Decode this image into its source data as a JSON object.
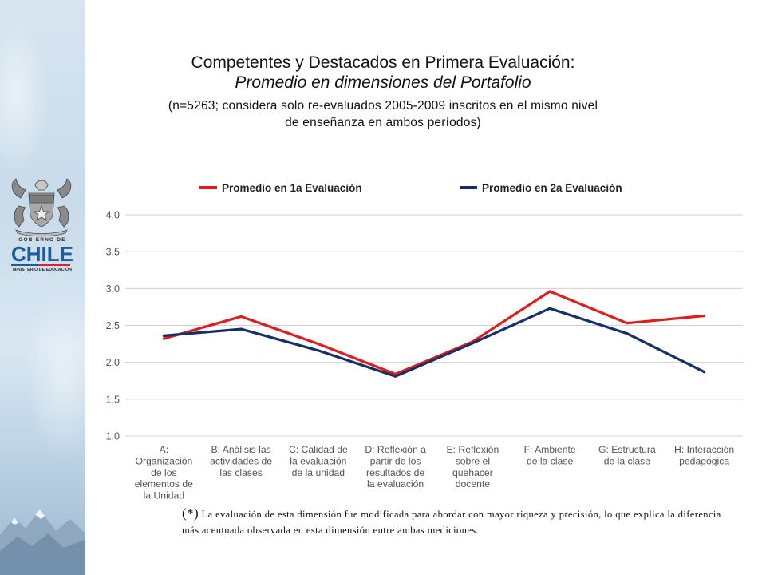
{
  "slide": {
    "title_line1": "Competentes y Destacados en Primera Evaluación:",
    "title_line2": "Promedio en dimensiones del Portafolio",
    "subtitle_line1": "(n=5263; considera solo re-evaluados 2005-2009 inscritos en el mismo nivel",
    "subtitle_line2": "de enseñanza en ambos períodos)",
    "footnote_mark": "(*)",
    "footnote_text": " La evaluación de esta dimensión fue modificada para abordar con mayor riqueza y precisión, lo que explica la diferencia más acentuada observada en esta dimensión entre ambas mediciones."
  },
  "logo": {
    "top_label": "GOBIERNO DE",
    "word": "CHILE",
    "bottom_label": "MINISTERIO DE EDUCACIÓN",
    "crest_icon": "coat-of-arms-icon"
  },
  "colors": {
    "first_eval": "#e31b1b",
    "second_eval": "#152f6b",
    "grid": "#d0d0d0",
    "tick_text": "#555555",
    "chile_blue": "#1c5d9e",
    "chile_red": "#d7262e"
  },
  "chart_data": {
    "type": "line",
    "title": "",
    "xlabel": "",
    "ylabel": "",
    "ylim": [
      1.0,
      4.0
    ],
    "yticks": [
      1.0,
      1.5,
      2.0,
      2.5,
      3.0,
      3.5,
      4.0
    ],
    "ytick_labels": [
      "1,0",
      "1,5",
      "2,0",
      "2,5",
      "3,0",
      "3,5",
      "4,0"
    ],
    "grid": true,
    "legend_position": "top",
    "categories": [
      [
        "A:",
        "Organización",
        "de los",
        "elementos de",
        "la Unidad"
      ],
      [
        "B: Análisis las",
        "actividades de",
        "las clases"
      ],
      [
        "C: Calidad de",
        "la evaluación",
        "de la unidad"
      ],
      [
        "D: Reflexión a",
        "partir de los",
        "resultados de",
        "la evaluación"
      ],
      [
        "E: Reflexión",
        "sobre el",
        "quehacer",
        "docente"
      ],
      [
        "F: Ambiente",
        "de la clase"
      ],
      [
        "G: Estructura",
        "de la clase"
      ],
      [
        "H: Interacción",
        "pedagógica"
      ]
    ],
    "series": [
      {
        "name": "Promedio en 1a Evaluación",
        "color": "#e31b1b",
        "values": [
          2.32,
          2.62,
          2.25,
          1.84,
          2.28,
          2.96,
          2.53,
          2.63
        ]
      },
      {
        "name": "Promedio en 2a Evaluación",
        "color": "#152f6b",
        "values": [
          2.36,
          2.45,
          2.16,
          1.81,
          2.26,
          2.73,
          2.39,
          1.87
        ]
      }
    ]
  }
}
